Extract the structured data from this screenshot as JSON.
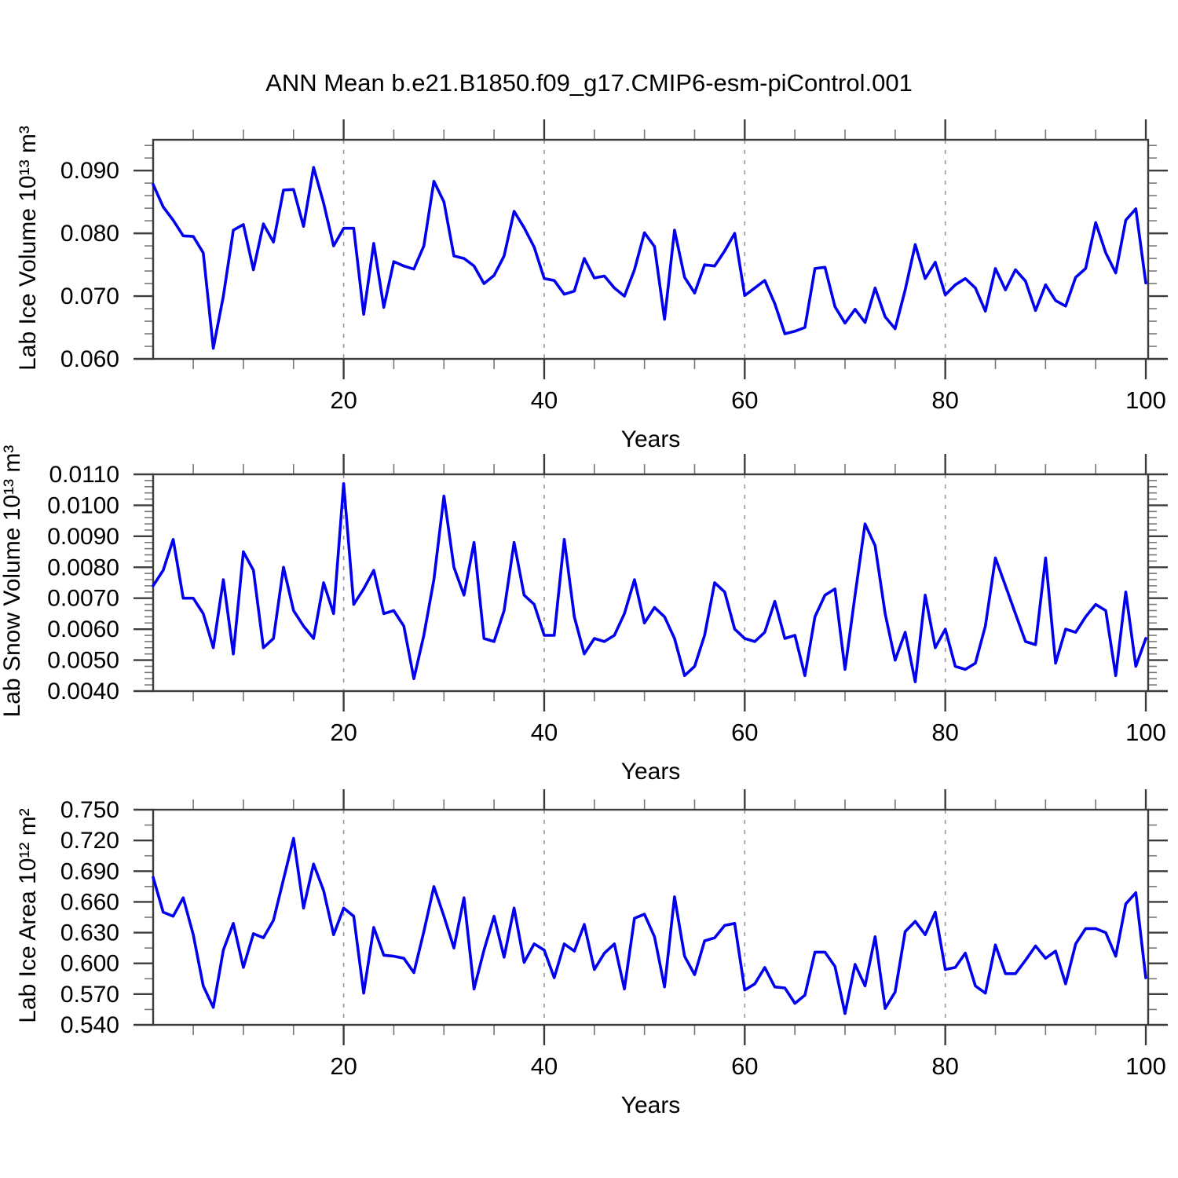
{
  "title": "ANN Mean b.e21.B1850.f09_g17.CMIP6-esm-piControl.001",
  "colors": {
    "line": "#0000ee",
    "axis": "#3c3c3c",
    "major_tick": "#3c3c3c",
    "minor_tick": "#777777",
    "grid": "#999999",
    "text": "#000000",
    "background": "#ffffff"
  },
  "x_axis": {
    "label": "Years",
    "range_start": 1,
    "range_end": 100,
    "major_ticks": [
      20,
      40,
      60,
      80,
      100
    ],
    "major_tick_labels": [
      "20",
      "40",
      "60",
      "80",
      "100"
    ],
    "minor_step": 5,
    "gridlines": [
      20,
      40,
      60,
      80
    ],
    "grid_style": "dashed"
  },
  "chart_data": [
    {
      "type": "line",
      "name": "lab-ice-volume",
      "ylabel": "Lab Ice Volume 10¹³ m³",
      "xlabel": "Years",
      "ylim": [
        0.06,
        0.0949
      ],
      "ytick_values": [
        0.06,
        0.07,
        0.08,
        0.09
      ],
      "ytick_labels": [
        "0.060",
        "0.070",
        "0.080",
        "0.090"
      ],
      "yminor_step": 0.002,
      "x_start": 1,
      "values": [
        0.0878,
        0.0842,
        0.0821,
        0.0796,
        0.0795,
        0.0769,
        0.0617,
        0.07,
        0.0805,
        0.0814,
        0.0742,
        0.0815,
        0.0786,
        0.0869,
        0.087,
        0.0811,
        0.0905,
        0.0848,
        0.078,
        0.0808,
        0.0808,
        0.0671,
        0.0784,
        0.0682,
        0.0755,
        0.0748,
        0.0743,
        0.078,
        0.0883,
        0.085,
        0.0764,
        0.076,
        0.0748,
        0.072,
        0.0733,
        0.0764,
        0.0835,
        0.0809,
        0.0778,
        0.0728,
        0.0725,
        0.0703,
        0.0708,
        0.076,
        0.0729,
        0.0732,
        0.0713,
        0.07,
        0.0742,
        0.0801,
        0.0779,
        0.0663,
        0.0805,
        0.073,
        0.0705,
        0.075,
        0.0748,
        0.0772,
        0.08,
        0.0701,
        0.0713,
        0.0725,
        0.0688,
        0.064,
        0.0644,
        0.065,
        0.0744,
        0.0746,
        0.0683,
        0.0657,
        0.0679,
        0.0658,
        0.0713,
        0.0667,
        0.0648,
        0.071,
        0.0782,
        0.0728,
        0.0754,
        0.0702,
        0.0718,
        0.0728,
        0.0713,
        0.0676,
        0.0744,
        0.071,
        0.0742,
        0.0724,
        0.0677,
        0.0718,
        0.0693,
        0.0684,
        0.073,
        0.0744,
        0.0817,
        0.0769,
        0.0737,
        0.0821,
        0.0839,
        0.0721
      ]
    },
    {
      "type": "line",
      "name": "lab-snow-volume",
      "ylabel": "Lab Snow Volume 10¹³ m³",
      "xlabel": "Years",
      "ylim": [
        0.004,
        0.011
      ],
      "ytick_values": [
        0.004,
        0.005,
        0.006,
        0.007,
        0.008,
        0.009,
        0.01,
        0.011
      ],
      "ytick_labels": [
        "0.0040",
        "0.0050",
        "0.0060",
        "0.0070",
        "0.0080",
        "0.0090",
        "0.0100",
        "0.0110"
      ],
      "yminor_step": 0.0002,
      "x_start": 1,
      "values": [
        0.0074,
        0.0079,
        0.0089,
        0.007,
        0.007,
        0.0065,
        0.0054,
        0.0076,
        0.0052,
        0.0085,
        0.0079,
        0.0054,
        0.0057,
        0.008,
        0.0066,
        0.0061,
        0.0057,
        0.0075,
        0.0065,
        0.0107,
        0.0068,
        0.0073,
        0.0079,
        0.0065,
        0.0066,
        0.0061,
        0.0044,
        0.0058,
        0.0076,
        0.0103,
        0.008,
        0.0071,
        0.0088,
        0.0057,
        0.0056,
        0.0066,
        0.0088,
        0.0071,
        0.0068,
        0.0058,
        0.0058,
        0.0089,
        0.0064,
        0.0052,
        0.0057,
        0.0056,
        0.0058,
        0.0065,
        0.0076,
        0.0062,
        0.0067,
        0.0064,
        0.0057,
        0.0045,
        0.0048,
        0.0058,
        0.0075,
        0.0072,
        0.006,
        0.0057,
        0.0056,
        0.0059,
        0.0069,
        0.0057,
        0.0058,
        0.0045,
        0.0064,
        0.0071,
        0.0073,
        0.0047,
        0.0071,
        0.0094,
        0.0087,
        0.0065,
        0.005,
        0.0059,
        0.0043,
        0.0071,
        0.0054,
        0.006,
        0.0048,
        0.0047,
        0.0049,
        0.0061,
        0.0083,
        0.0074,
        0.0065,
        0.0056,
        0.0055,
        0.0083,
        0.0049,
        0.006,
        0.0059,
        0.0064,
        0.0068,
        0.0066,
        0.0045,
        0.0072,
        0.0048,
        0.0057
      ]
    },
    {
      "type": "line",
      "name": "lab-ice-area",
      "ylabel": "Lab Ice Area 10¹² m²",
      "xlabel": "Years",
      "ylim": [
        0.54,
        0.75
      ],
      "ytick_values": [
        0.54,
        0.57,
        0.6,
        0.63,
        0.66,
        0.69,
        0.72,
        0.75
      ],
      "ytick_labels": [
        "0.540",
        "0.570",
        "0.600",
        "0.630",
        "0.660",
        "0.690",
        "0.720",
        "0.750"
      ],
      "yminor_step": 0.015,
      "x_start": 1,
      "values": [
        0.684,
        0.65,
        0.646,
        0.664,
        0.628,
        0.578,
        0.557,
        0.613,
        0.639,
        0.596,
        0.629,
        0.625,
        0.642,
        0.682,
        0.722,
        0.654,
        0.697,
        0.671,
        0.628,
        0.654,
        0.646,
        0.571,
        0.635,
        0.608,
        0.607,
        0.605,
        0.591,
        0.631,
        0.675,
        0.646,
        0.615,
        0.664,
        0.575,
        0.613,
        0.646,
        0.606,
        0.654,
        0.601,
        0.619,
        0.613,
        0.586,
        0.619,
        0.612,
        0.638,
        0.594,
        0.61,
        0.619,
        0.575,
        0.644,
        0.648,
        0.626,
        0.577,
        0.665,
        0.607,
        0.589,
        0.622,
        0.625,
        0.637,
        0.639,
        0.574,
        0.58,
        0.596,
        0.577,
        0.576,
        0.561,
        0.569,
        0.611,
        0.611,
        0.597,
        0.551,
        0.599,
        0.578,
        0.626,
        0.556,
        0.572,
        0.631,
        0.641,
        0.628,
        0.65,
        0.594,
        0.596,
        0.61,
        0.578,
        0.571,
        0.618,
        0.59,
        0.59,
        0.603,
        0.617,
        0.605,
        0.612,
        0.58,
        0.619,
        0.634,
        0.634,
        0.63,
        0.607,
        0.658,
        0.669,
        0.586
      ]
    }
  ]
}
